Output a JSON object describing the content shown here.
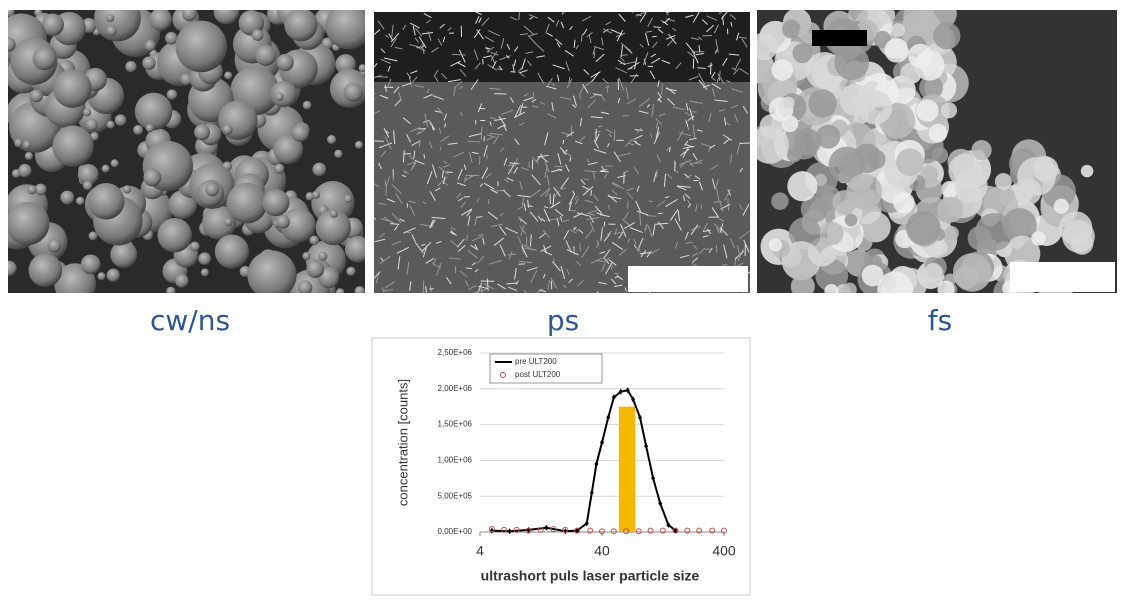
{
  "images": [
    {
      "label": "cw/ns"
    },
    {
      "label": "ps"
    },
    {
      "label": "fs"
    }
  ],
  "chart_data": {
    "type": "line",
    "xlabel": "ultrashort puls laser particle size",
    "ylabel": "concentration [counts]",
    "xscale": "log",
    "xlim": [
      4,
      400
    ],
    "xticks": [
      4,
      40,
      400
    ],
    "ylim": [
      0,
      2500000
    ],
    "yticks": [
      {
        "value": 0,
        "label": "0,00E+00"
      },
      {
        "value": 500000,
        "label": "5,00E+05"
      },
      {
        "value": 1000000,
        "label": "1,00E+06"
      },
      {
        "value": 1500000,
        "label": "1,50E+06"
      },
      {
        "value": 2000000,
        "label": "2,00E+06"
      },
      {
        "value": 2500000,
        "label": "2,50E+06"
      }
    ],
    "grid": true,
    "legend": "upper left",
    "highlight": {
      "x": [
        55,
        75
      ],
      "value": 1750000,
      "color": "#f5b800"
    },
    "series": [
      {
        "name": "pre ULT200",
        "color": "#000000",
        "x": [
          5,
          7,
          10,
          14,
          20,
          25,
          30,
          33,
          36,
          40,
          45,
          50,
          57,
          65,
          72,
          82,
          92,
          105,
          120,
          140,
          160
        ],
        "values": [
          20000,
          10000,
          30000,
          60000,
          10000,
          20000,
          120000,
          550000,
          950000,
          1250000,
          1600000,
          1880000,
          1960000,
          1980000,
          1850000,
          1600000,
          1200000,
          750000,
          400000,
          100000,
          20000
        ]
      },
      {
        "name": "post ULT200",
        "color": "#c0504d",
        "x": [
          5,
          6.3,
          8,
          10,
          12.6,
          16,
          20,
          25,
          32,
          40,
          50,
          63,
          80,
          100,
          126,
          160,
          200,
          250,
          320,
          400
        ],
        "values": [
          40000,
          30000,
          30000,
          20000,
          30000,
          40000,
          30000,
          20000,
          20000,
          10000,
          10000,
          10000,
          10000,
          20000,
          20000,
          20000,
          20000,
          20000,
          20000,
          20000
        ]
      }
    ]
  }
}
